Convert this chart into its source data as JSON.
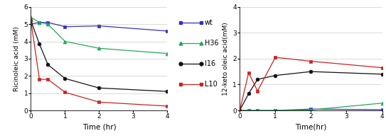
{
  "left": {
    "xlabel": "Time (hr)",
    "ylabel": "Ricinoleic acid (mM)",
    "xlim": [
      0,
      4
    ],
    "ylim": [
      0,
      6
    ],
    "xticks": [
      0,
      1,
      2,
      3,
      4
    ],
    "yticks": [
      0,
      1,
      2,
      3,
      4,
      5,
      6
    ],
    "series": [
      {
        "name": "wt",
        "x": [
          0,
          0.25,
          0.5,
          1,
          2,
          4
        ],
        "y": [
          5.0,
          5.1,
          5.1,
          4.85,
          4.9,
          4.6
        ],
        "color": "#3333bb",
        "marker": "s"
      },
      {
        "name": "H36",
        "x": [
          0,
          0.25,
          0.5,
          1,
          2,
          4
        ],
        "y": [
          5.4,
          5.1,
          5.0,
          4.0,
          3.6,
          3.3
        ],
        "color": "#22aa55",
        "marker": "^"
      },
      {
        "name": "I16",
        "x": [
          0,
          0.25,
          0.5,
          1,
          2,
          4
        ],
        "y": [
          5.2,
          3.85,
          2.65,
          1.85,
          1.3,
          1.1
        ],
        "color": "#111111",
        "marker": "o"
      },
      {
        "name": "L10",
        "x": [
          0,
          0.25,
          0.5,
          1,
          2,
          4
        ],
        "y": [
          5.2,
          1.8,
          1.8,
          1.05,
          0.48,
          0.25
        ],
        "color": "#cc2222",
        "marker": "s"
      }
    ]
  },
  "right": {
    "xlabel": "Time(hr)",
    "ylabel": "12-keto oleic acid(mM)",
    "xlim": [
      0,
      4
    ],
    "ylim": [
      0,
      4
    ],
    "xticks": [
      0,
      1,
      2,
      3,
      4
    ],
    "yticks": [
      0,
      1,
      2,
      3,
      4
    ],
    "series": [
      {
        "name": "wt",
        "x": [
          0,
          0.25,
          0.5,
          1,
          2,
          4
        ],
        "y": [
          0.0,
          0.0,
          0.0,
          0.0,
          0.05,
          0.03
        ],
        "color": "#3333bb",
        "marker": "s"
      },
      {
        "name": "H36",
        "x": [
          0,
          0.25,
          0.5,
          1,
          2,
          4
        ],
        "y": [
          0.0,
          0.0,
          0.0,
          0.0,
          0.02,
          0.28
        ],
        "color": "#22aa55",
        "marker": "^"
      },
      {
        "name": "I16",
        "x": [
          0,
          0.25,
          0.5,
          1,
          2,
          4
        ],
        "y": [
          0.0,
          0.65,
          1.2,
          1.35,
          1.5,
          1.4
        ],
        "color": "#111111",
        "marker": "o"
      },
      {
        "name": "L10",
        "x": [
          0,
          0.25,
          0.5,
          1,
          2,
          4
        ],
        "y": [
          0.0,
          1.45,
          0.75,
          2.05,
          1.9,
          1.65
        ],
        "color": "#cc2222",
        "marker": "s"
      }
    ]
  },
  "legend": {
    "labels": [
      "wt",
      "H36",
      "I16",
      "L10"
    ],
    "colors": [
      "#3333bb",
      "#22aa55",
      "#111111",
      "#cc2222"
    ],
    "markers": [
      "s",
      "^",
      "o",
      "s"
    ]
  },
  "figsize": [
    5.43,
    1.95
  ],
  "dpi": 100
}
